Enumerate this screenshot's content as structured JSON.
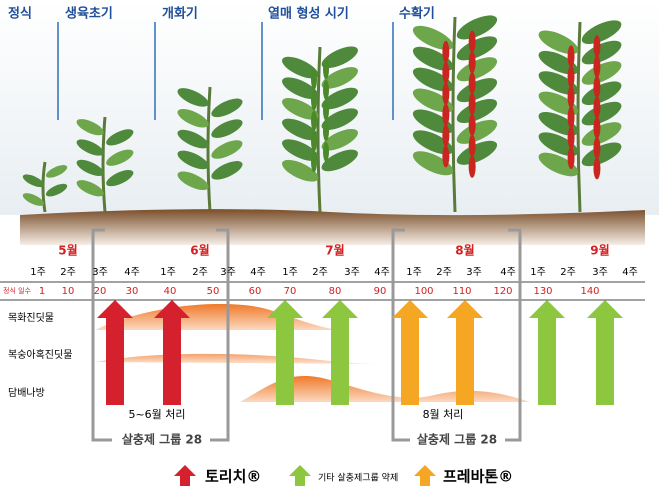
{
  "stages": [
    "정식",
    "생육초기",
    "개화기",
    "열매 형성 시기",
    "수확기"
  ],
  "months": [
    "5월",
    "6월",
    "7월",
    "8월",
    "9월"
  ],
  "weeks": [
    "1주",
    "2주",
    "3주",
    "4주",
    "1주",
    "2주",
    "3주",
    "4주",
    "1주",
    "2주",
    "3주",
    "4주",
    "1주",
    "2주",
    "3주",
    "4주",
    "1주",
    "2주",
    "3주",
    "4주"
  ],
  "days_label": "정식 일수",
  "days": [
    1,
    10,
    20,
    30,
    40,
    50,
    60,
    70,
    80,
    90,
    100,
    110,
    120,
    130,
    140
  ],
  "pests": [
    "목화진딧물",
    "복숭아혹진딧물",
    "담배나방"
  ],
  "brackets": [
    {
      "period": "5~6월 처리",
      "group": "살충제 그룹 28"
    },
    {
      "period": "8월 처리",
      "group": "살충제 그룹 28"
    }
  ],
  "legend": [
    "토리치®",
    "기타 살충제그룹 약제",
    "프레바톤®"
  ]
}
